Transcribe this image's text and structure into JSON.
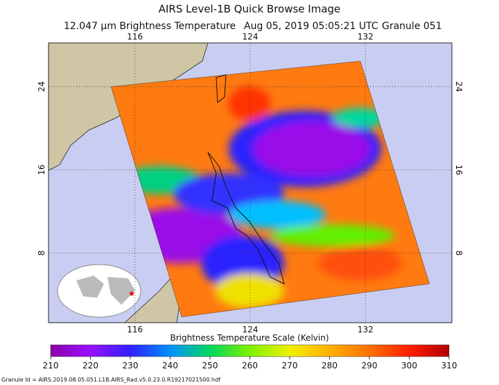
{
  "header": {
    "title": "AIRS Level-1B Quick Browse Image",
    "quantity": "12.047 µm Brightness Temperature",
    "datetime": "Aug 05, 2019 05:05:21 UTC",
    "granule": "Granule 051"
  },
  "map": {
    "lon_range": [
      110,
      138
    ],
    "lat_range": [
      1.3,
      28.2
    ],
    "lon_ticks": [
      116,
      124,
      132
    ],
    "lat_ticks": [
      24,
      16,
      8
    ]
  },
  "colorbar": {
    "label": "Brightness Temperature Scale (Kelvin)",
    "range": [
      210,
      310
    ],
    "ticks": [
      210,
      220,
      230,
      240,
      250,
      260,
      270,
      280,
      290,
      300,
      310
    ]
  },
  "footer": "Granule Id = AIRS.2019.08.05.051.L1B.AIRS_Rad.v5.0.23.0.R19217021500.hdf"
}
